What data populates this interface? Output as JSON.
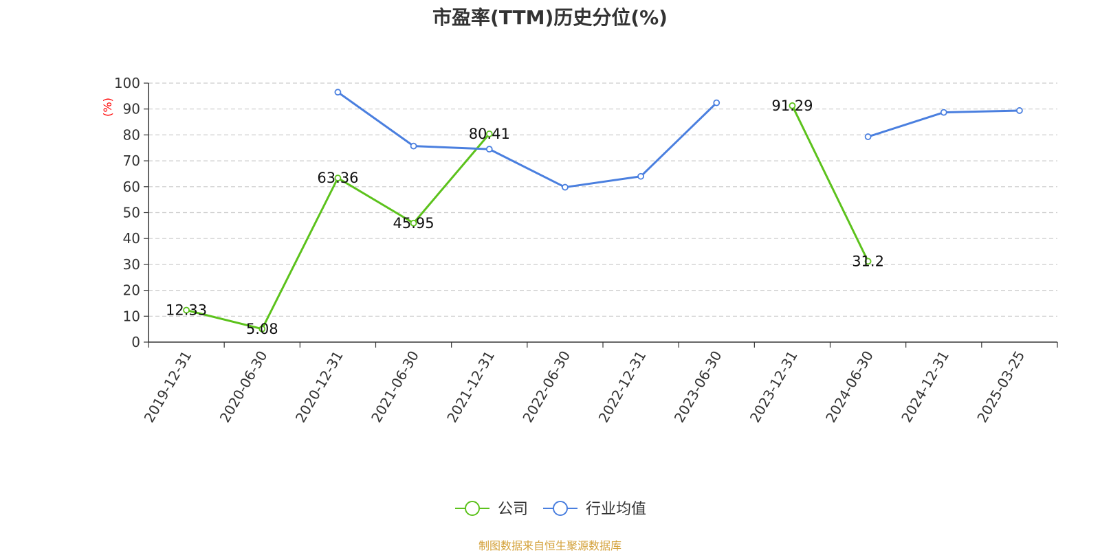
{
  "chart_data": {
    "type": "line",
    "title": "市盈率(TTM)历史分位(%)",
    "xlabel": "",
    "ylabel": "(%)",
    "ylim": [
      0,
      100
    ],
    "yticks": [
      "0",
      "10",
      "20",
      "30",
      "40",
      "50",
      "60",
      "70",
      "80",
      "90",
      "100"
    ],
    "categories": [
      "2019-12-31",
      "2020-06-30",
      "2020-12-31",
      "2021-06-30",
      "2021-12-31",
      "2022-06-30",
      "2022-12-31",
      "2023-06-30",
      "2023-12-31",
      "2024-06-30",
      "2024-12-31",
      "2025-03-25"
    ],
    "grid": true,
    "legend_position": "bottom-center",
    "series": [
      {
        "name": "公司",
        "color": "#5cc21c",
        "values": [
          12.33,
          5.08,
          63.36,
          45.95,
          80.41,
          null,
          null,
          null,
          91.29,
          31.2,
          null,
          null
        ],
        "labels": [
          "12.33",
          "5.08",
          "63.36",
          "45.95",
          "80.41",
          "",
          "",
          "",
          "91.29",
          "31.2",
          "",
          ""
        ]
      },
      {
        "name": "行业均值",
        "color": "#4a7fdf",
        "values": [
          null,
          null,
          96.5,
          75.7,
          74.5,
          59.8,
          64.0,
          92.4,
          null,
          79.3,
          88.7,
          89.4
        ]
      }
    ]
  },
  "source": "制图数据来自恒生聚源数据库"
}
